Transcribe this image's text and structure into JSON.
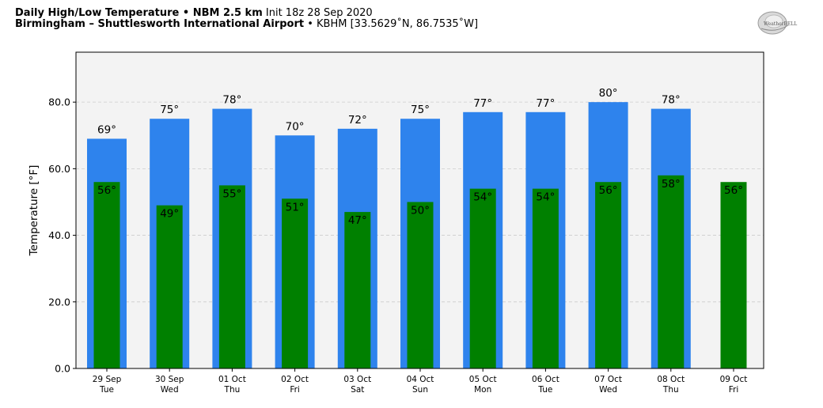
{
  "header": {
    "title_bold": "Daily High/Low Temperature • NBM 2.5 km",
    "title_init": "Init 18z 28 Sep 2020",
    "location_bold": "Birmingham – Shuttlesworth International Airport",
    "location_rest": "• KBHM [33.5629˚N, 86.7535˚W]",
    "logo_text": "WeatherBELL"
  },
  "chart_data": {
    "type": "bar",
    "ylabel": "Temperature [°F]",
    "ylim": [
      0,
      95
    ],
    "yticks": [
      "0.0",
      "20.0",
      "40.0",
      "60.0",
      "80.0"
    ],
    "ytick_values": [
      0,
      20,
      40,
      60,
      80
    ],
    "grid": true,
    "categories_date": [
      "29 Sep",
      "30 Sep",
      "01 Oct",
      "02 Oct",
      "03 Oct",
      "04 Oct",
      "05 Oct",
      "06 Oct",
      "07 Oct",
      "08 Oct",
      "09 Oct"
    ],
    "categories_day": [
      "Tue",
      "Wed",
      "Thu",
      "Fri",
      "Sat",
      "Sun",
      "Mon",
      "Tue",
      "Wed",
      "Thu",
      "Fri"
    ],
    "series": [
      {
        "color": "#2e83ed",
        "values": [
          69,
          75,
          78,
          70,
          72,
          75,
          77,
          77,
          80,
          78,
          null
        ],
        "labels": [
          "69°",
          "75°",
          "78°",
          "70°",
          "72°",
          "75°",
          "77°",
          "77°",
          "80°",
          "78°",
          ""
        ]
      },
      {
        "color": "#008000",
        "values": [
          56,
          49,
          55,
          51,
          47,
          50,
          54,
          54,
          56,
          58,
          56
        ],
        "labels": [
          "56°",
          "49°",
          "55°",
          "51°",
          "47°",
          "50°",
          "54°",
          "54°",
          "56°",
          "58°",
          "56°"
        ]
      }
    ],
    "plot_background": "#f3f3f3"
  }
}
